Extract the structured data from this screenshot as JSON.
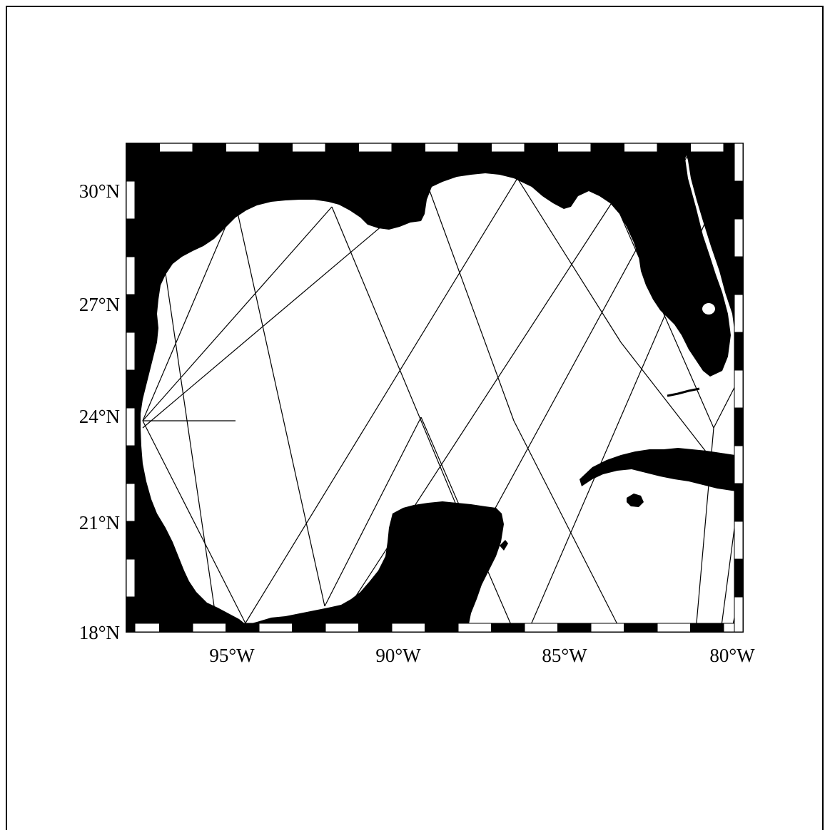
{
  "map": {
    "region": "Gulf of Mexico",
    "lon_range": [
      -98,
      -79.5
    ],
    "lat_range": [
      17.8,
      31.5
    ],
    "lat_ticks": [
      {
        "value": 30,
        "label": "30°N"
      },
      {
        "value": 27,
        "label": "27°N"
      },
      {
        "value": 24,
        "label": "24°N"
      },
      {
        "value": 21,
        "label": "21°N"
      },
      {
        "value": 18,
        "label": "18°N"
      }
    ],
    "lon_ticks": [
      {
        "value": -95,
        "label": "95°W"
      },
      {
        "value": -90,
        "label": "90°W"
      },
      {
        "value": -85,
        "label": "85°W"
      },
      {
        "value": -80,
        "label": "80°W"
      }
    ],
    "colors": {
      "land": "#000000",
      "ocean": "#ffffff",
      "track": "#000000",
      "frame": "#000000"
    },
    "tracks_description_free": true
  }
}
